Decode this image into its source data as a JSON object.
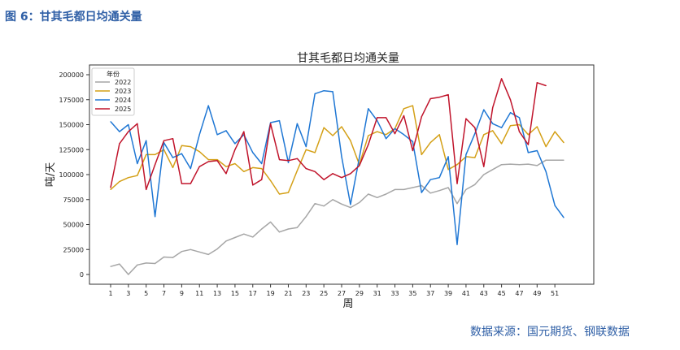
{
  "caption": "图 6：甘其毛都日均通关量",
  "source": "数据来源：国元期货、钢联数据",
  "chart_data": {
    "type": "line",
    "title": "甘其毛都日均通关量",
    "xlabel": "周",
    "ylabel": "吨/天",
    "legend_title": "年份",
    "legend_position": "top-left",
    "grid": false,
    "xlim": [
      1,
      53
    ],
    "ylim": [
      0,
      200000
    ],
    "x_ticks": [
      1,
      3,
      5,
      7,
      9,
      11,
      13,
      15,
      17,
      19,
      21,
      23,
      25,
      27,
      29,
      31,
      33,
      35,
      37,
      39,
      41,
      43,
      45,
      47,
      49,
      51
    ],
    "y_ticks": [
      0,
      25000,
      50000,
      75000,
      100000,
      125000,
      150000,
      175000,
      200000
    ],
    "series": [
      {
        "name": "2022",
        "color": "#a6a6a6",
        "x": [
          1,
          2,
          3,
          4,
          5,
          6,
          7,
          8,
          9,
          10,
          11,
          12,
          13,
          14,
          15,
          16,
          17,
          18,
          19,
          20,
          21,
          22,
          23,
          24,
          25,
          26,
          27,
          28,
          29,
          30,
          31,
          32,
          33,
          34,
          35,
          36,
          37,
          38,
          39,
          40,
          41,
          42,
          43,
          44,
          45,
          46,
          47,
          48,
          49,
          50,
          51,
          52
        ],
        "values": [
          8000,
          10500,
          0,
          9500,
          11500,
          11000,
          17500,
          17000,
          23000,
          25000,
          22500,
          20000,
          25500,
          33500,
          37000,
          40500,
          37500,
          45500,
          52500,
          42500,
          45500,
          47000,
          58000,
          71000,
          68500,
          75000,
          70500,
          67000,
          72000,
          80500,
          77000,
          80500,
          85000,
          85000,
          87000,
          89000,
          81500,
          84000,
          87000,
          71000,
          85000,
          90000,
          100000,
          105000,
          110000,
          110500,
          110000,
          110500,
          109000,
          114500,
          114500,
          114500
        ]
      },
      {
        "name": "2023",
        "color": "#d4a017",
        "x": [
          1,
          2,
          3,
          4,
          5,
          6,
          7,
          8,
          9,
          10,
          11,
          12,
          13,
          14,
          15,
          16,
          17,
          18,
          19,
          20,
          21,
          22,
          23,
          24,
          25,
          26,
          27,
          28,
          29,
          30,
          31,
          32,
          33,
          34,
          35,
          36,
          37,
          38,
          39,
          40,
          41,
          42,
          43,
          44,
          45,
          46,
          47,
          48,
          49,
          50,
          51,
          52
        ],
        "values": [
          85000,
          93000,
          97000,
          99000,
          120000,
          120000,
          125000,
          107000,
          129000,
          128000,
          123000,
          115000,
          115000,
          108000,
          111000,
          103000,
          107000,
          106000,
          94000,
          80500,
          82000,
          104000,
          125000,
          122000,
          147000,
          139000,
          148000,
          134000,
          110000,
          139000,
          143000,
          140000,
          146000,
          166000,
          169000,
          120000,
          132000,
          140000,
          105000,
          110000,
          118000,
          117000,
          140000,
          144000,
          131000,
          149000,
          150000,
          140000,
          148000,
          128000,
          143000,
          132000
        ]
      },
      {
        "name": "2024",
        "color": "#1f77d4",
        "x": [
          1,
          2,
          3,
          4,
          5,
          6,
          7,
          8,
          9,
          10,
          11,
          12,
          13,
          14,
          15,
          16,
          17,
          18,
          19,
          20,
          21,
          22,
          23,
          24,
          25,
          26,
          27,
          28,
          29,
          30,
          31,
          32,
          33,
          34,
          35,
          36,
          37,
          38,
          39,
          40,
          41,
          42,
          43,
          44,
          45,
          46,
          47,
          48,
          49,
          50,
          51,
          52
        ],
        "values": [
          153000,
          143000,
          150000,
          111000,
          134000,
          58000,
          132000,
          117000,
          121000,
          106000,
          140000,
          169000,
          140000,
          144000,
          131000,
          140000,
          122000,
          111000,
          152000,
          154000,
          112000,
          151000,
          128000,
          181000,
          184000,
          183000,
          118000,
          70000,
          117000,
          166000,
          154000,
          136000,
          146000,
          140000,
          133000,
          82000,
          95000,
          97000,
          118000,
          30000,
          120000,
          141000,
          165000,
          151000,
          147000,
          162000,
          157000,
          122000,
          124000,
          103000,
          69000,
          57000
        ]
      },
      {
        "name": "2025",
        "color": "#c0142b",
        "x": [
          1,
          2,
          3,
          4,
          5,
          6,
          7,
          8,
          9,
          10,
          11,
          12,
          13,
          14,
          15,
          16,
          17,
          18,
          19,
          20,
          21,
          22,
          23,
          24,
          25,
          26,
          27,
          28,
          29,
          30,
          31,
          32,
          33,
          34,
          35,
          36,
          37,
          38,
          39,
          40,
          41,
          42,
          43,
          44,
          45,
          46,
          47,
          48,
          49,
          50
        ],
        "values": [
          87000,
          131000,
          143000,
          151000,
          85000,
          110000,
          134000,
          136000,
          91000,
          91000,
          108000,
          113000,
          114000,
          101000,
          125000,
          143000,
          89500,
          95000,
          151000,
          115000,
          114000,
          116000,
          106000,
          103000,
          95000,
          101000,
          97000,
          101000,
          109000,
          130000,
          157000,
          157000,
          141000,
          159000,
          124000,
          158000,
          176000,
          177500,
          180000,
          91000,
          156000,
          147000,
          108000,
          167000,
          196000,
          175000,
          143000,
          130000,
          192000,
          189000
        ]
      }
    ]
  }
}
